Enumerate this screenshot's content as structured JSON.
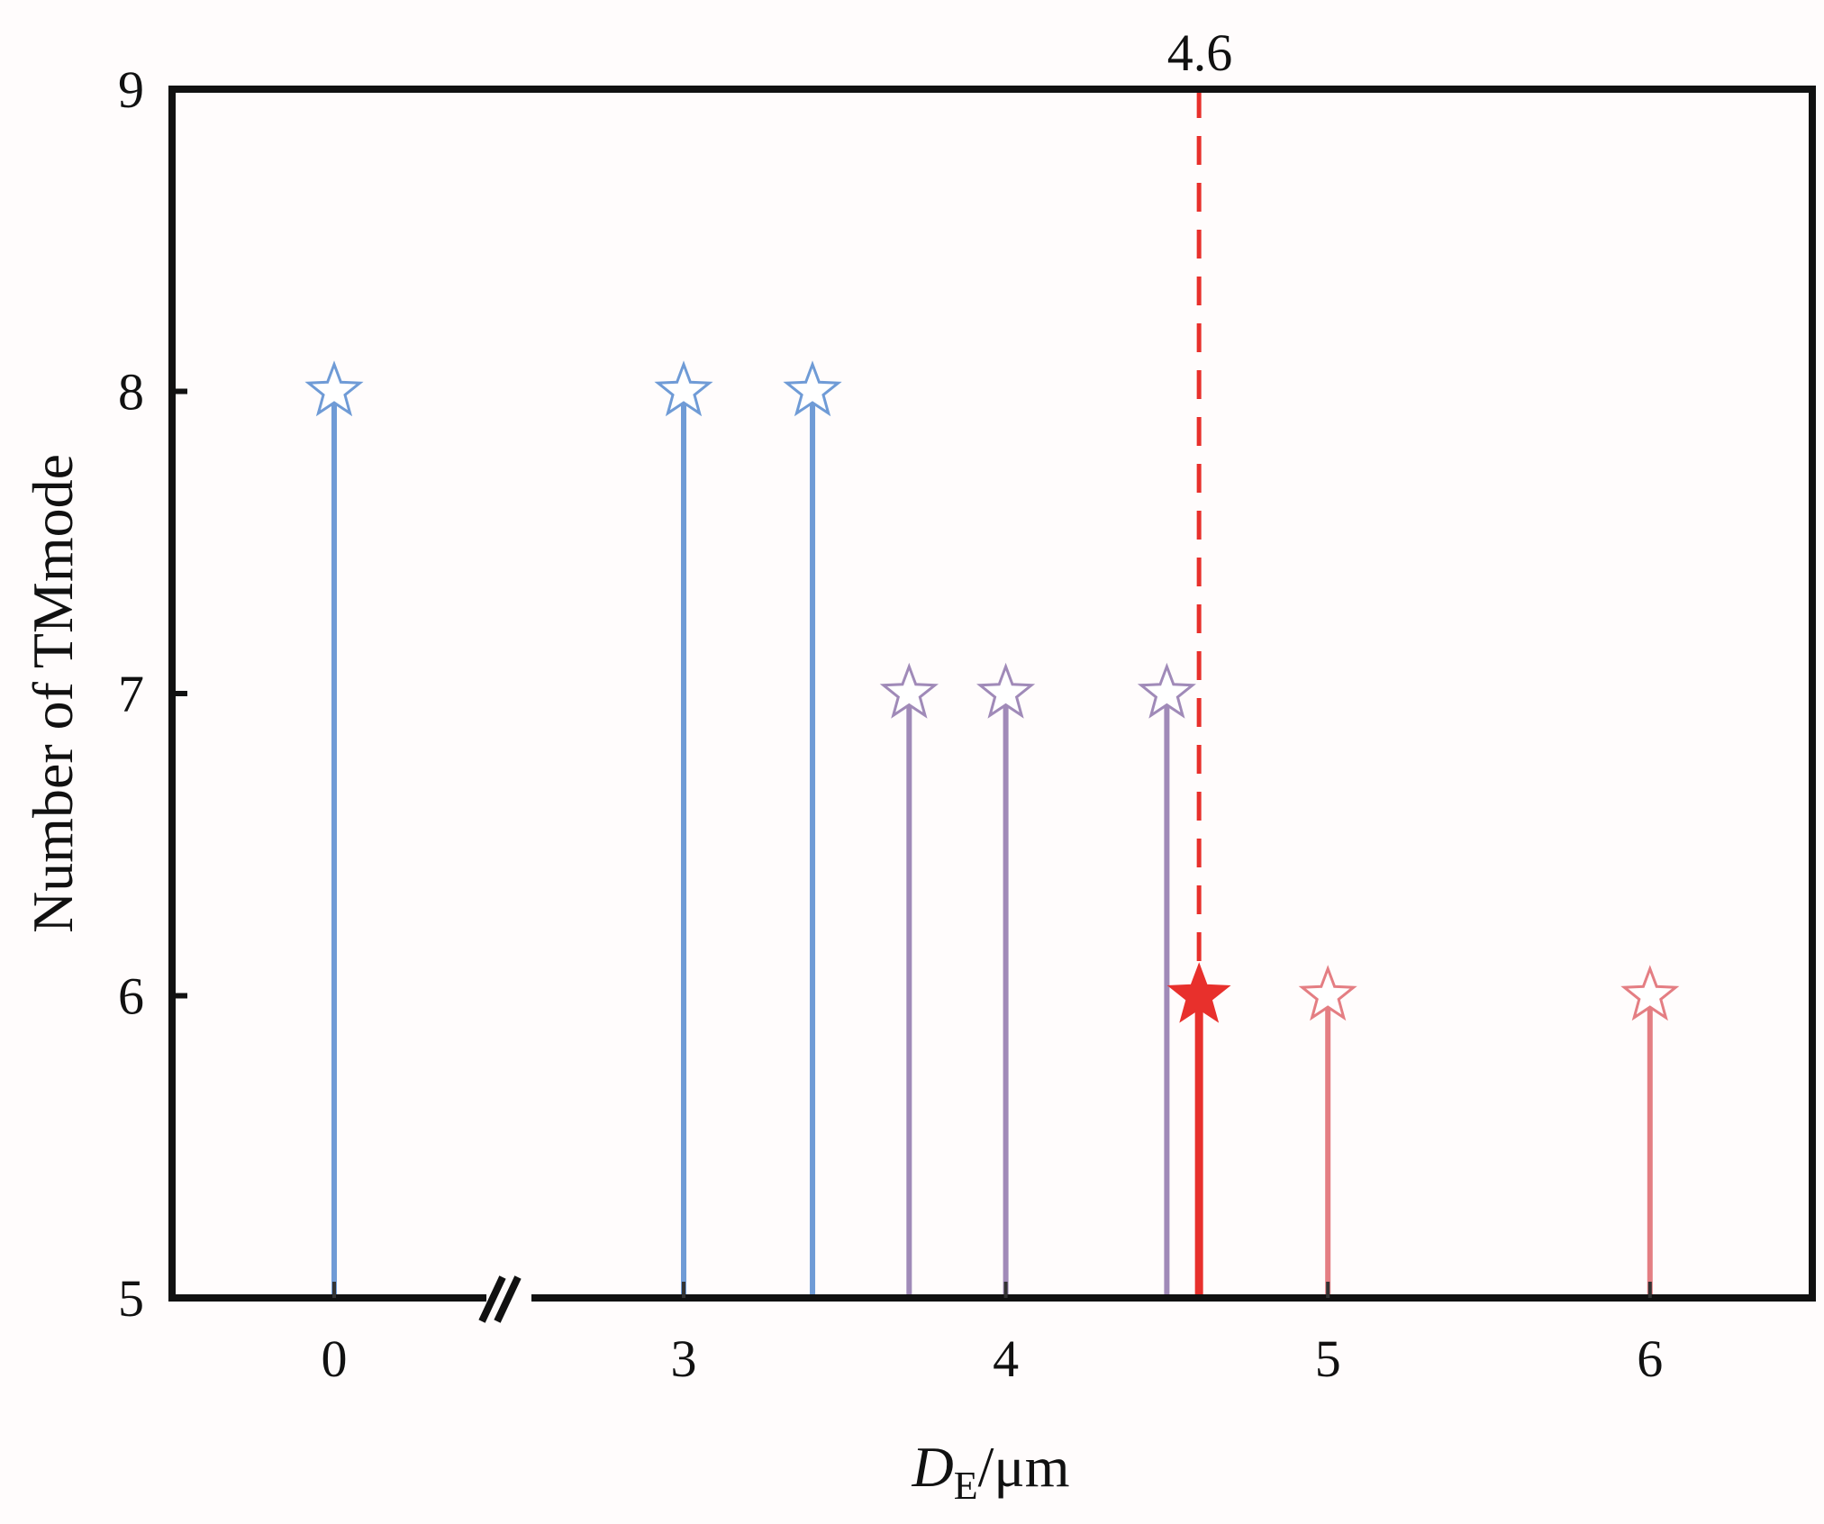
{
  "chart_data": {
    "type": "stem",
    "title": "",
    "xlabel": {
      "main": "D",
      "subscript": "E",
      "unit": "/μm"
    },
    "ylabel": "Number of TMmode",
    "ylim": [
      5,
      9
    ],
    "yticks": [
      "5",
      "6",
      "7",
      "8",
      "9"
    ],
    "xticks": [
      "0",
      "3",
      "4",
      "5",
      "6"
    ],
    "x_axis_break": "between 0 and 3",
    "series": [
      {
        "name": "blue",
        "color": "#6f9bd6",
        "marker": "hollow-star",
        "x": [
          0,
          3,
          3.4
        ],
        "y": [
          8,
          8,
          8
        ]
      },
      {
        "name": "purple",
        "color": "#a08ab8",
        "marker": "hollow-star",
        "x": [
          3.7,
          4,
          4.5
        ],
        "y": [
          7,
          7,
          7
        ]
      },
      {
        "name": "highlight",
        "color": "#e8302c",
        "marker": "filled-star",
        "x": [
          4.6
        ],
        "y": [
          6
        ]
      },
      {
        "name": "pink",
        "color": "#e47e83",
        "marker": "hollow-star",
        "x": [
          5,
          6
        ],
        "y": [
          6,
          6
        ]
      }
    ],
    "reference_line": {
      "x": 4.6,
      "label": "4.6",
      "color": "#e8302c",
      "style": "dashed"
    },
    "grid": false
  }
}
